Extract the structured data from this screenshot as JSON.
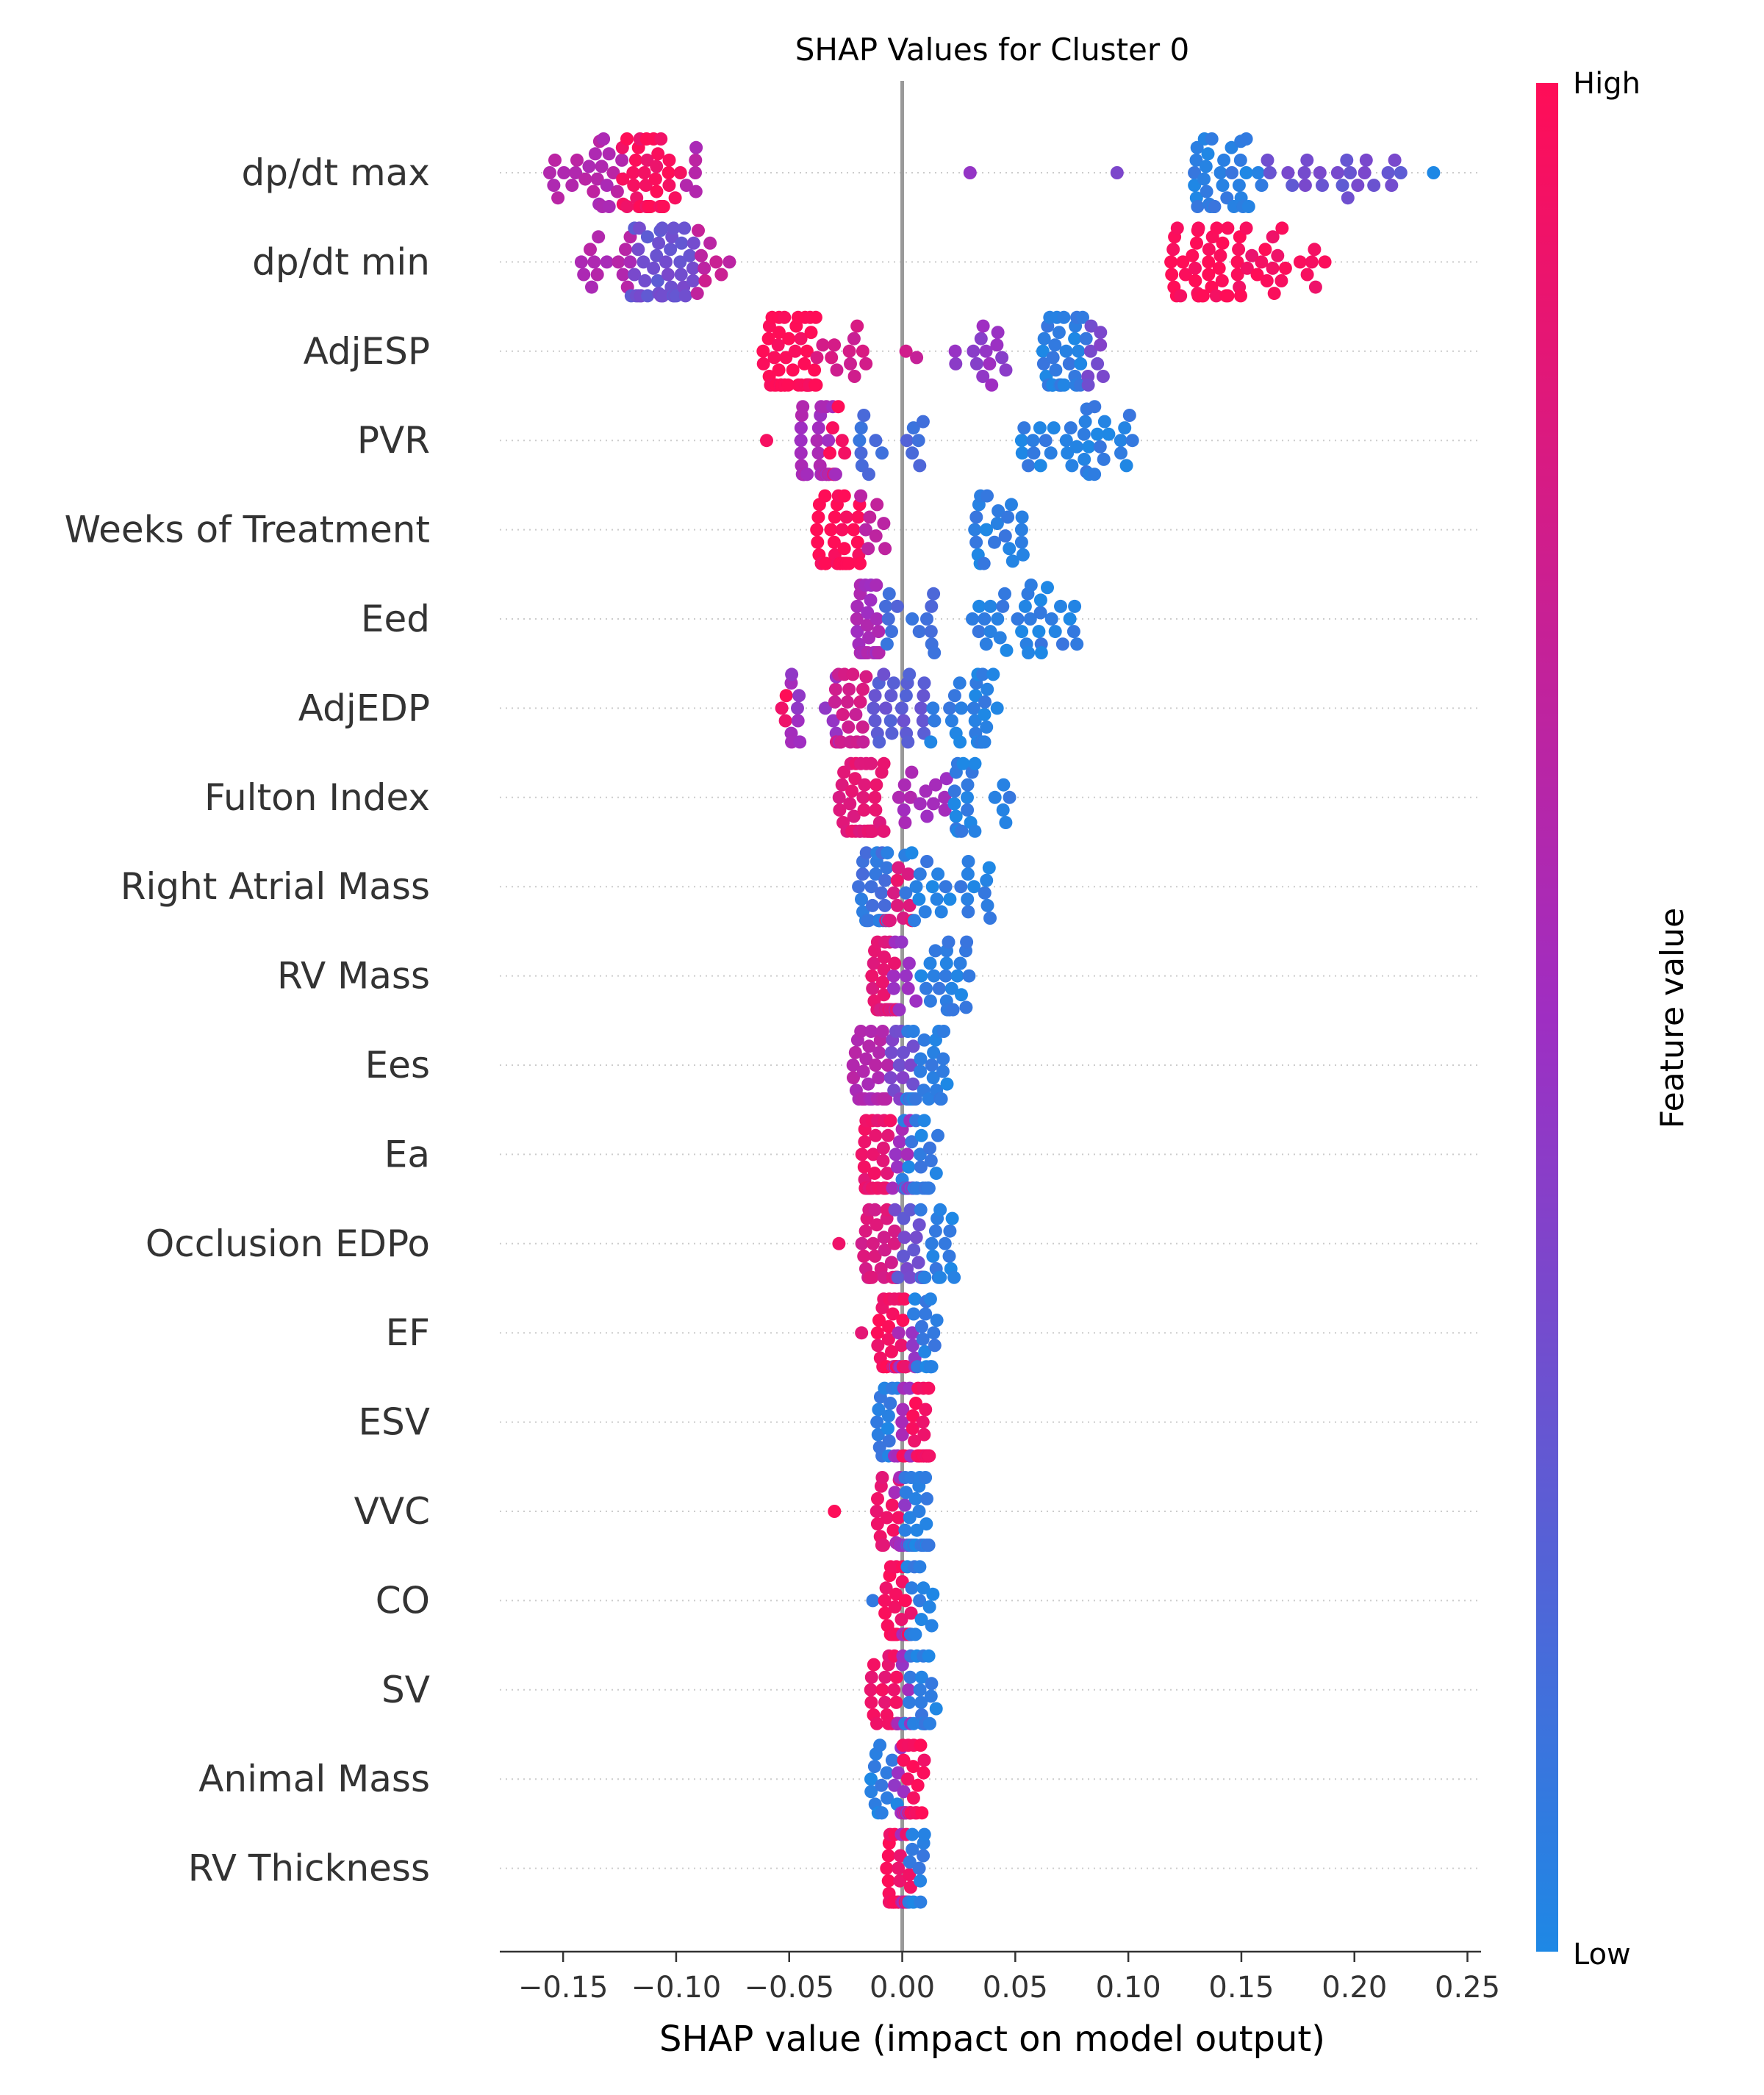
{
  "chart_data": {
    "type": "scatter",
    "subtype": "shap-beeswarm",
    "title": "SHAP Values for Cluster 0",
    "xlabel": "SHAP value (impact on model output)",
    "xlim": [
      -0.178,
      0.256
    ],
    "xticks": [
      -0.15,
      -0.1,
      -0.05,
      0.0,
      0.05,
      0.1,
      0.15,
      0.2,
      0.25
    ],
    "xtick_labels": [
      "−0.15",
      "−0.10",
      "−0.05",
      "0.00",
      "0.05",
      "0.10",
      "0.15",
      "0.20",
      "0.25"
    ],
    "reference_line_x": 0,
    "colorbar": {
      "title": "Feature value",
      "high_label": "High",
      "low_label": "Low",
      "high_color": "#ff0d57",
      "mid_color": "#9f2ec2",
      "low_color": "#1e88e5"
    },
    "features": [
      {
        "name": "dp/dt max",
        "clusters": [
          {
            "range": [
              -0.16,
              -0.123
            ],
            "n": 24,
            "color_t": 0.6
          },
          {
            "range": [
              -0.124,
              -0.098
            ],
            "n": 38,
            "color_t": 0.95
          },
          {
            "range": [
              -0.098,
              -0.088
            ],
            "n": 5,
            "color_t": 0.6
          },
          {
            "range": [
              0.03,
              0.03
            ],
            "n": 1,
            "color_t": 0.45
          },
          {
            "range": [
              0.095,
              0.095
            ],
            "n": 1,
            "color_t": 0.4
          },
          {
            "range": [
              0.126,
              0.16
            ],
            "n": 34,
            "color_t": 0.05
          },
          {
            "range": [
              0.16,
              0.222
            ],
            "n": 22,
            "color_t": 0.3
          },
          {
            "range": [
              0.235,
              0.235
            ],
            "n": 1,
            "color_t": 0.0
          }
        ]
      },
      {
        "name": "dp/dt min",
        "clusters": [
          {
            "range": [
              -0.143,
              -0.118
            ],
            "n": 14,
            "color_t": 0.6
          },
          {
            "range": [
              -0.12,
              -0.092
            ],
            "n": 42,
            "color_t": 0.3
          },
          {
            "range": [
              -0.092,
              -0.075
            ],
            "n": 9,
            "color_t": 0.7
          },
          {
            "range": [
              0.118,
              0.145
            ],
            "n": 36,
            "color_t": 1.0
          },
          {
            "range": [
              0.148,
              0.19
            ],
            "n": 26,
            "color_t": 0.95
          }
        ]
      },
      {
        "name": "AdjESP",
        "clusters": [
          {
            "range": [
              -0.062,
              -0.038
            ],
            "n": 46,
            "color_t": 1.0
          },
          {
            "range": [
              -0.038,
              -0.015
            ],
            "n": 12,
            "color_t": 0.75
          },
          {
            "range": [
              0.0,
              0.01
            ],
            "n": 2,
            "color_t": 0.7
          },
          {
            "range": [
              0.022,
              0.048
            ],
            "n": 14,
            "color_t": 0.45
          },
          {
            "range": [
              0.062,
              0.082
            ],
            "n": 34,
            "color_t": 0.05
          },
          {
            "range": [
              0.08,
              0.093
            ],
            "n": 8,
            "color_t": 0.35
          }
        ]
      },
      {
        "name": "PVR",
        "clusters": [
          {
            "range": [
              -0.06,
              -0.06
            ],
            "n": 1,
            "color_t": 0.9
          },
          {
            "range": [
              -0.045,
              -0.028
            ],
            "n": 34,
            "color_t": 0.55
          },
          {
            "range": [
              -0.035,
              -0.025
            ],
            "n": 10,
            "color_t": 0.95
          },
          {
            "range": [
              -0.025,
              0.01
            ],
            "n": 14,
            "color_t": 0.15
          },
          {
            "range": [
              0.052,
              0.102
            ],
            "n": 36,
            "color_t": 0.05
          }
        ]
      },
      {
        "name": "Weeks of Treatment",
        "clusters": [
          {
            "range": [
              -0.038,
              -0.018
            ],
            "n": 38,
            "color_t": 1.0
          },
          {
            "range": [
              -0.02,
              -0.005
            ],
            "n": 8,
            "color_t": 0.65
          },
          {
            "range": [
              0.032,
              0.055
            ],
            "n": 22,
            "color_t": 0.05
          }
        ]
      },
      {
        "name": "Eed",
        "clusters": [
          {
            "range": [
              -0.022,
              -0.01
            ],
            "n": 32,
            "color_t": 0.55
          },
          {
            "range": [
              -0.008,
              0.015
            ],
            "n": 14,
            "color_t": 0.15
          },
          {
            "range": [
              0.03,
              0.08
            ],
            "n": 34,
            "color_t": 0.05
          }
        ]
      },
      {
        "name": "AdjEDP",
        "clusters": [
          {
            "range": [
              -0.06,
              -0.05
            ],
            "n": 3,
            "color_t": 0.95
          },
          {
            "range": [
              -0.05,
              -0.025
            ],
            "n": 14,
            "color_t": 0.5
          },
          {
            "range": [
              -0.03,
              -0.015
            ],
            "n": 22,
            "color_t": 0.75
          },
          {
            "range": [
              -0.015,
              0.01
            ],
            "n": 24,
            "color_t": 0.25
          },
          {
            "range": [
              0.01,
              0.042
            ],
            "n": 30,
            "color_t": 0.05
          }
        ]
      },
      {
        "name": "Fulton Index",
        "clusters": [
          {
            "range": [
              -0.028,
              -0.008
            ],
            "n": 38,
            "color_t": 0.85
          },
          {
            "range": [
              -0.006,
              0.02
            ],
            "n": 14,
            "color_t": 0.55
          },
          {
            "range": [
              0.02,
              0.048
            ],
            "n": 22,
            "color_t": 0.05
          }
        ]
      },
      {
        "name": "Right Atrial Mass",
        "clusters": [
          {
            "range": [
              -0.02,
              -0.005
            ],
            "n": 32,
            "color_t": 0.1
          },
          {
            "range": [
              -0.008,
              0.005
            ],
            "n": 14,
            "color_t": 0.85
          },
          {
            "range": [
              0.0,
              0.04
            ],
            "n": 26,
            "color_t": 0.05
          }
        ]
      },
      {
        "name": "RV Mass",
        "clusters": [
          {
            "range": [
              -0.014,
              -0.002
            ],
            "n": 34,
            "color_t": 0.85
          },
          {
            "range": [
              -0.004,
              0.008
            ],
            "n": 10,
            "color_t": 0.5
          },
          {
            "range": [
              0.008,
              0.03
            ],
            "n": 24,
            "color_t": 0.05
          }
        ]
      },
      {
        "name": "Ees",
        "clusters": [
          {
            "range": [
              -0.022,
              -0.006
            ],
            "n": 30,
            "color_t": 0.6
          },
          {
            "range": [
              -0.006,
              0.005
            ],
            "n": 14,
            "color_t": 0.35
          },
          {
            "range": [
              0.002,
              0.02
            ],
            "n": 30,
            "color_t": 0.05
          }
        ]
      },
      {
        "name": "Ea",
        "clusters": [
          {
            "range": [
              -0.018,
              -0.005
            ],
            "n": 30,
            "color_t": 0.9
          },
          {
            "range": [
              -0.006,
              0.005
            ],
            "n": 12,
            "color_t": 0.5
          },
          {
            "range": [
              0.0,
              0.016
            ],
            "n": 30,
            "color_t": 0.05
          }
        ]
      },
      {
        "name": "Occlusion EDPo",
        "clusters": [
          {
            "range": [
              -0.028,
              -0.028
            ],
            "n": 1,
            "color_t": 0.95
          },
          {
            "range": [
              -0.018,
              -0.002
            ],
            "n": 32,
            "color_t": 0.8
          },
          {
            "range": [
              -0.004,
              0.01
            ],
            "n": 16,
            "color_t": 0.3
          },
          {
            "range": [
              0.008,
              0.025
            ],
            "n": 20,
            "color_t": 0.05
          }
        ]
      },
      {
        "name": "EF",
        "clusters": [
          {
            "range": [
              -0.018,
              -0.018
            ],
            "n": 1,
            "color_t": 0.9
          },
          {
            "range": [
              -0.012,
              0.002
            ],
            "n": 32,
            "color_t": 0.95
          },
          {
            "range": [
              -0.004,
              0.006
            ],
            "n": 10,
            "color_t": 0.5
          },
          {
            "range": [
              0.004,
              0.016
            ],
            "n": 16,
            "color_t": 0.05
          }
        ]
      },
      {
        "name": "ESV",
        "clusters": [
          {
            "range": [
              -0.012,
              0.0
            ],
            "n": 14,
            "color_t": 0.05
          },
          {
            "range": [
              -0.004,
              0.004
            ],
            "n": 10,
            "color_t": 0.5
          },
          {
            "range": [
              0.0,
              0.012
            ],
            "n": 30,
            "color_t": 0.95
          }
        ]
      },
      {
        "name": "VVC",
        "clusters": [
          {
            "range": [
              -0.03,
              -0.03
            ],
            "n": 1,
            "color_t": 0.95
          },
          {
            "range": [
              -0.012,
              0.0
            ],
            "n": 14,
            "color_t": 0.9
          },
          {
            "range": [
              -0.004,
              0.004
            ],
            "n": 8,
            "color_t": 0.5
          },
          {
            "range": [
              0.0,
              0.012
            ],
            "n": 28,
            "color_t": 0.05
          }
        ]
      },
      {
        "name": "CO",
        "clusters": [
          {
            "range": [
              -0.013,
              -0.013
            ],
            "n": 1,
            "color_t": 0.05
          },
          {
            "range": [
              -0.008,
              0.004
            ],
            "n": 34,
            "color_t": 0.95
          },
          {
            "range": [
              -0.002,
              0.004
            ],
            "n": 6,
            "color_t": 0.5
          },
          {
            "range": [
              0.002,
              0.014
            ],
            "n": 14,
            "color_t": 0.05
          }
        ]
      },
      {
        "name": "SV",
        "clusters": [
          {
            "range": [
              -0.014,
              -0.002
            ],
            "n": 22,
            "color_t": 0.9
          },
          {
            "range": [
              -0.004,
              0.004
            ],
            "n": 10,
            "color_t": 0.5
          },
          {
            "range": [
              0.0,
              0.015
            ],
            "n": 22,
            "color_t": 0.05
          }
        ]
      },
      {
        "name": "Animal Mass",
        "clusters": [
          {
            "range": [
              -0.014,
              -0.002
            ],
            "n": 14,
            "color_t": 0.05
          },
          {
            "range": [
              -0.004,
              0.004
            ],
            "n": 10,
            "color_t": 0.5
          },
          {
            "range": [
              0.0,
              0.01
            ],
            "n": 26,
            "color_t": 0.95
          }
        ]
      },
      {
        "name": "RV Thickness",
        "clusters": [
          {
            "range": [
              -0.008,
              0.004
            ],
            "n": 28,
            "color_t": 0.95
          },
          {
            "range": [
              -0.004,
              0.004
            ],
            "n": 8,
            "color_t": 0.5
          },
          {
            "range": [
              0.0,
              0.01
            ],
            "n": 14,
            "color_t": 0.05
          }
        ]
      }
    ]
  }
}
